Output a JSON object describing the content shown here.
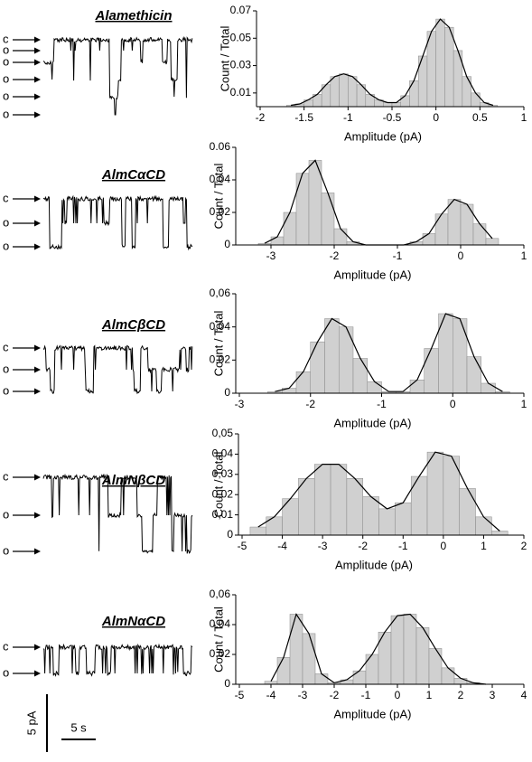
{
  "traces": [
    {
      "title": "Alamethicin",
      "levels": [
        "c",
        "o",
        "o",
        "o",
        "o",
        "o"
      ]
    },
    {
      "title": "AlmCαCD",
      "levels": [
        "c",
        "o",
        "o"
      ]
    },
    {
      "title": "AlmCβCD",
      "levels": [
        "c",
        "o",
        "o"
      ]
    },
    {
      "title": "AlmNβCD",
      "levels": [
        "c",
        "o",
        "o"
      ]
    },
    {
      "title": "AlmNαCD",
      "levels": [
        "c",
        "o"
      ]
    }
  ],
  "scale_bar": {
    "y": "5 pA",
    "x": "5 s"
  },
  "chart_data": [
    {
      "type": "histogram",
      "xlabel": "Amplitude (pA)",
      "ylabel": "Count / Total",
      "color": "#d0d0d0",
      "bins": [
        -1.7,
        -1.6,
        -1.5,
        -1.4,
        -1.3,
        -1.2,
        -1.1,
        -1.0,
        -0.9,
        -0.8,
        -0.7,
        -0.6,
        -0.5,
        -0.4,
        -0.3,
        -0.2,
        -0.1,
        0.0,
        0.1,
        0.2,
        0.3,
        0.4,
        0.5,
        0.6,
        0.7
      ],
      "values": [
        0.001,
        0.002,
        0.005,
        0.009,
        0.016,
        0.022,
        0.024,
        0.022,
        0.016,
        0.009,
        0.005,
        0.003,
        0.003,
        0.008,
        0.019,
        0.037,
        0.055,
        0.064,
        0.058,
        0.041,
        0.022,
        0.01,
        0.003,
        0.001
      ],
      "xlim": [
        -2,
        1
      ],
      "xticks": [
        -2,
        -1.5,
        -1,
        -0.5,
        0,
        0.5,
        1
      ],
      "ylim": [
        0,
        0.07
      ],
      "yticks": [
        0.01,
        0.03,
        0.05,
        0.07
      ]
    },
    {
      "type": "histogram",
      "xlabel": "Amplitude (pA)",
      "ylabel": "Count / Total",
      "color": "#d0d0d0",
      "bins": [
        -3.2,
        -3.0,
        -2.8,
        -2.6,
        -2.4,
        -2.2,
        -2.0,
        -1.8,
        -1.6,
        -1.4,
        -1.2,
        -1.0,
        -0.8,
        -0.6,
        -0.4,
        -0.2,
        0.0,
        0.2,
        0.4,
        0.6
      ],
      "values": [
        0.001,
        0.005,
        0.02,
        0.044,
        0.052,
        0.032,
        0.01,
        0.002,
        0,
        0,
        0,
        0,
        0.002,
        0.007,
        0.019,
        0.028,
        0.025,
        0.013,
        0.004
      ],
      "xlim": [
        -3.5,
        1
      ],
      "xticks": [
        -3,
        -2,
        -1,
        0,
        1
      ],
      "ylim": [
        0,
        0.06
      ],
      "yticks": [
        0,
        0.02,
        0.04,
        0.06
      ]
    },
    {
      "type": "histogram",
      "xlabel": "Amplitude (pA)",
      "ylabel": "Count / Total",
      "color": "#d0d0d0",
      "bins": [
        -2.6,
        -2.4,
        -2.2,
        -2.0,
        -1.8,
        -1.6,
        -1.4,
        -1.2,
        -1.0,
        -0.8,
        -0.6,
        -0.4,
        -0.2,
        0.0,
        0.2,
        0.4,
        0.6,
        0.8
      ],
      "values": [
        0.001,
        0.003,
        0.013,
        0.031,
        0.045,
        0.04,
        0.021,
        0.007,
        0.001,
        0.001,
        0.008,
        0.027,
        0.048,
        0.045,
        0.022,
        0.006,
        0.001
      ],
      "xlim": [
        -3,
        1
      ],
      "xticks": [
        -3,
        -2,
        -1,
        0,
        1
      ],
      "ylim": [
        0,
        0.06
      ],
      "yticks": [
        0,
        {
          "value": 0.02,
          "label": "0,02"
        },
        {
          "value": 0.04,
          "label": "0,04"
        },
        {
          "value": 0.06,
          "label": "0,06"
        }
      ]
    },
    {
      "type": "histogram",
      "xlabel": "Amplitude (pA)",
      "ylabel": "Count / Total",
      "color": "#d0d0d0",
      "bins": [
        -4.8,
        -4.4,
        -4.0,
        -3.6,
        -3.2,
        -2.8,
        -2.4,
        -2.0,
        -1.6,
        -1.2,
        -0.8,
        -0.4,
        0.0,
        0.4,
        0.8,
        1.2,
        1.6
      ],
      "values": [
        0.004,
        0.009,
        0.018,
        0.028,
        0.035,
        0.035,
        0.028,
        0.019,
        0.013,
        0.016,
        0.029,
        0.041,
        0.039,
        0.023,
        0.009,
        0.002
      ],
      "xlim": [
        -5,
        2
      ],
      "xticks": [
        -5,
        -4,
        -3,
        -2,
        -1,
        0,
        1,
        2
      ],
      "ylim": [
        0,
        0.05
      ],
      "yticks": [
        0,
        {
          "value": 0.01,
          "label": "0,01"
        },
        {
          "value": 0.02,
          "label": "0,02"
        },
        {
          "value": 0.03,
          "label": "0,03"
        },
        {
          "value": 0.04,
          "label": "0,04"
        },
        {
          "value": 0.05,
          "label": "0,05"
        }
      ]
    },
    {
      "type": "histogram",
      "xlabel": "Amplitude (pA)",
      "ylabel": "Count / Total",
      "color": "#d0d0d0",
      "bins": [
        -4.2,
        -3.8,
        -3.4,
        -3.0,
        -2.6,
        -2.2,
        -1.8,
        -1.4,
        -1.0,
        -0.6,
        -0.2,
        0.2,
        0.6,
        1.0,
        1.4,
        1.8,
        2.2,
        2.6,
        3.0
      ],
      "values": [
        0.002,
        0.018,
        0.047,
        0.034,
        0.007,
        0.001,
        0.003,
        0.009,
        0.02,
        0.035,
        0.046,
        0.047,
        0.038,
        0.024,
        0.011,
        0.004,
        0.001,
        0
      ],
      "xlim": [
        -5,
        4
      ],
      "xticks": [
        -5,
        -4,
        -3,
        -2,
        -1,
        0,
        1,
        2,
        3,
        4
      ],
      "ylim": [
        0,
        0.06
      ],
      "yticks": [
        0,
        {
          "value": 0.02,
          "label": "0,02"
        },
        {
          "value": 0.04,
          "label": "0,04"
        },
        {
          "value": 0.06,
          "label": "0,06"
        }
      ]
    }
  ]
}
